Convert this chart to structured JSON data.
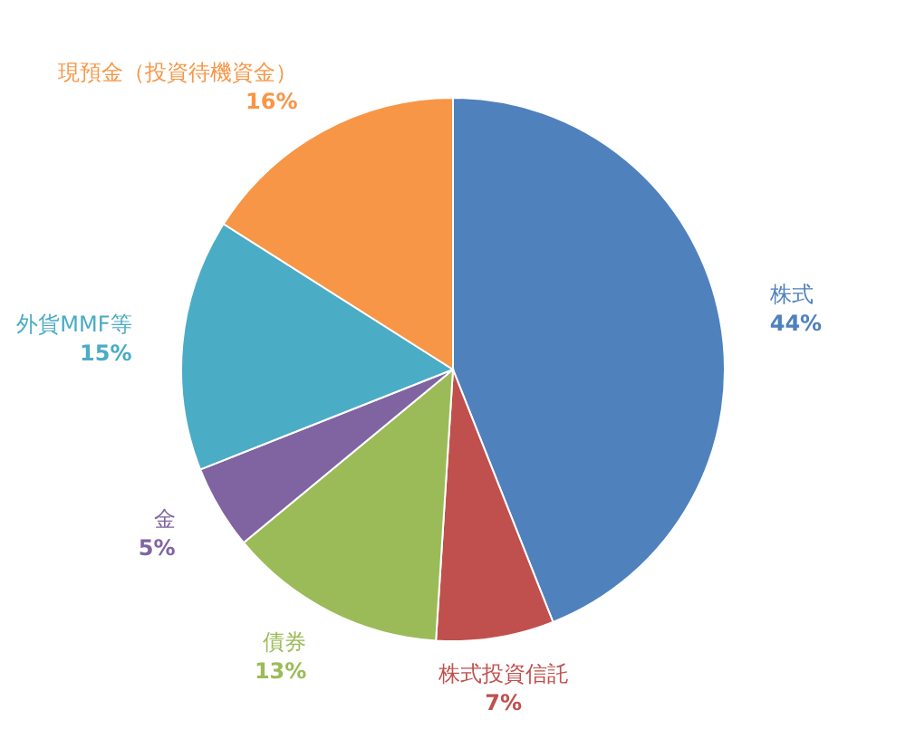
{
  "chart_data": {
    "type": "pie",
    "categories": [
      "株式",
      "株式投資信託",
      "債券",
      "金",
      "外貨MMF等",
      "現預金（投資待機資金）"
    ],
    "values": [
      44,
      7,
      13,
      5,
      15,
      16
    ],
    "colors": [
      "#4f81bd",
      "#c0504d",
      "#9bbb59",
      "#8064a2",
      "#4bacc6",
      "#f79646"
    ],
    "value_labels": [
      "44%",
      "7%",
      "13%",
      "5%",
      "15%",
      "16%"
    ]
  }
}
